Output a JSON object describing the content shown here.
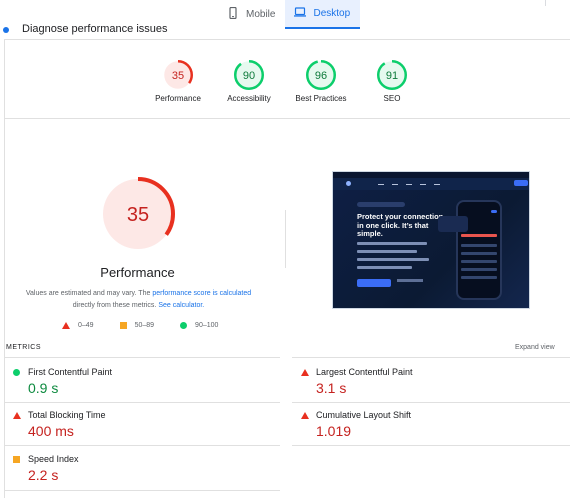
{
  "device_tabs": [
    {
      "label": "Mobile",
      "icon": "phone-icon",
      "active": false
    },
    {
      "label": "Desktop",
      "icon": "laptop-icon",
      "active": true
    }
  ],
  "diagnose_header": "Diagnose performance issues",
  "scores": [
    {
      "label": "Performance",
      "value": "35",
      "score": 0.35,
      "color": "#e8301f",
      "bg": "#fde8e6"
    },
    {
      "label": "Accessibility",
      "value": "90",
      "score": 0.9,
      "color": "#0cce6b",
      "bg": "#e6f9ef"
    },
    {
      "label": "Best Practices",
      "value": "96",
      "score": 0.96,
      "color": "#0cce6b",
      "bg": "#e6f9ef"
    },
    {
      "label": "SEO",
      "value": "91",
      "score": 0.91,
      "color": "#0cce6b",
      "bg": "#e6f9ef"
    }
  ],
  "main_gauge": {
    "value": "35",
    "score": 0.35,
    "title": "Performance",
    "color": "#e8301f",
    "bg": "#fde8e6"
  },
  "note": {
    "part1": "Values are estimated and may vary. The ",
    "link1": "performance score is calculated",
    "part2": " directly from these metrics. ",
    "link2": "See calculator."
  },
  "legend": [
    {
      "shape": "triangle",
      "color": "#e8301f",
      "label": "0–49"
    },
    {
      "shape": "square",
      "color": "#f6a623",
      "label": "50–89"
    },
    {
      "shape": "circle",
      "color": "#0cce6b",
      "label": "90–100"
    }
  ],
  "preview": {
    "headline": "Protect your connection in one click. It’s that simple."
  },
  "metrics": {
    "header": "METRICS",
    "expand_label": "Expand view",
    "items": [
      {
        "label": "First Contentful Paint",
        "value": "0.9 s",
        "status": "good"
      },
      {
        "label": "Largest Contentful Paint",
        "value": "3.1 s",
        "status": "poor"
      },
      {
        "label": "Total Blocking Time",
        "value": "400 ms",
        "status": "poor"
      },
      {
        "label": "Cumulative Layout Shift",
        "value": "1.019",
        "status": "poor"
      },
      {
        "label": "Speed Index",
        "value": "2.2 s",
        "status": "average"
      }
    ]
  },
  "colors": {
    "accent": "#1a73e8",
    "poor": "#e8301f",
    "average": "#f6a623",
    "good": "#0cce6b"
  }
}
